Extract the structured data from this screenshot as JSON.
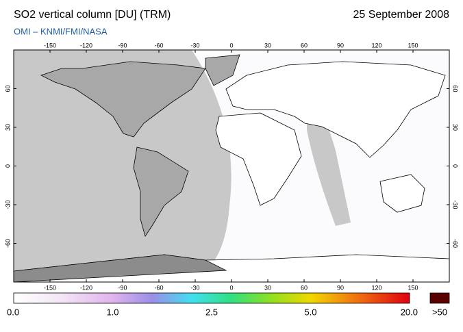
{
  "header": {
    "title": "SO2 vertical column [DU] (TRM)",
    "date": "25 September 2008",
    "source": "OMI  –  KNMI/FMI/NASA"
  },
  "map": {
    "lon_ticks": [
      -150,
      -120,
      -90,
      -60,
      -30,
      0,
      30,
      60,
      90,
      120,
      150
    ],
    "lat_ticks": [
      60,
      30,
      0,
      -30,
      -60
    ]
  },
  "colorbar": {
    "labels": [
      "0.0",
      "1.0",
      "2.5",
      "5.0",
      "20.0"
    ],
    "overflow_label": ">50"
  }
}
